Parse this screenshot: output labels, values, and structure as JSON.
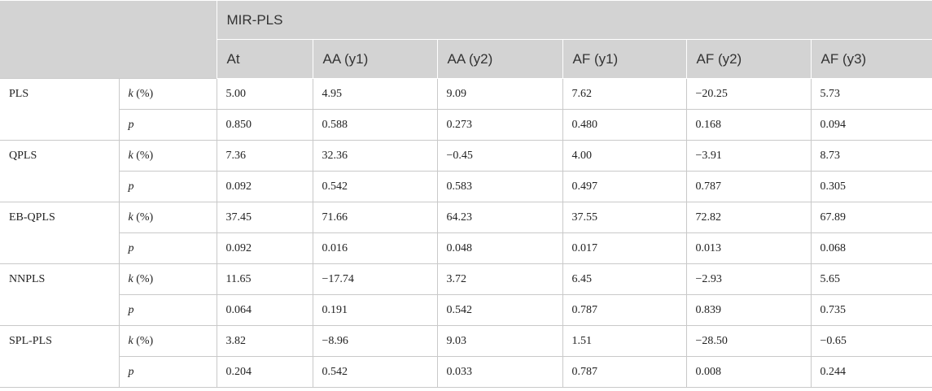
{
  "header": {
    "group_label": "MIR-PLS",
    "columns": [
      "At",
      "AA (y1)",
      "AA (y2)",
      "AF (y1)",
      "AF (y2)",
      "AF (y3)"
    ]
  },
  "stats": {
    "k_symbol": "k",
    "k_unit": " (%)",
    "p_symbol": "p"
  },
  "rows": [
    {
      "model": "PLS",
      "k": [
        "5.00",
        "4.95",
        "9.09",
        "7.62",
        "−20.25",
        "5.73"
      ],
      "p": [
        "0.850",
        "0.588",
        "0.273",
        "0.480",
        "0.168",
        "0.094"
      ]
    },
    {
      "model": "QPLS",
      "k": [
        "7.36",
        "32.36",
        "−0.45",
        "4.00",
        "−3.91",
        "8.73"
      ],
      "p": [
        "0.092",
        "0.542",
        "0.583",
        "0.497",
        "0.787",
        "0.305"
      ]
    },
    {
      "model": "EB-QPLS",
      "k": [
        "37.45",
        "71.66",
        "64.23",
        "37.55",
        "72.82",
        "67.89"
      ],
      "p": [
        "0.092",
        "0.016",
        "0.048",
        "0.017",
        "0.013",
        "0.068"
      ]
    },
    {
      "model": "NNPLS",
      "k": [
        "11.65",
        "−17.74",
        "3.72",
        "6.45",
        "−2.93",
        "5.65"
      ],
      "p": [
        "0.064",
        "0.191",
        "0.542",
        "0.787",
        "0.839",
        "0.735"
      ]
    },
    {
      "model": "SPL-PLS",
      "k": [
        "3.82",
        "−8.96",
        "9.03",
        "1.51",
        "−28.50",
        "−0.65"
      ],
      "p": [
        "0.204",
        "0.542",
        "0.033",
        "0.787",
        "0.008",
        "0.244"
      ]
    }
  ]
}
